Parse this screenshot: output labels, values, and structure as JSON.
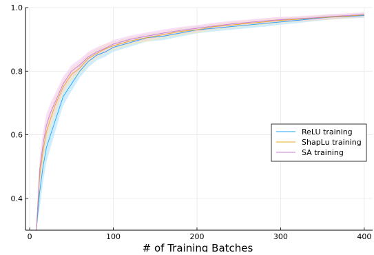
{
  "chart_data": {
    "type": "line",
    "title": "",
    "xlabel": "# of Training Batches",
    "ylabel": "",
    "xlim": [
      -5,
      410
    ],
    "ylim": [
      0.3,
      1.0
    ],
    "x_ticks": [
      0,
      100,
      200,
      300,
      400
    ],
    "y_ticks": [
      0.4,
      0.6,
      0.8,
      1.0
    ],
    "x_tick_labels": [
      "0",
      "100",
      "200",
      "300",
      "400"
    ],
    "y_tick_labels": [
      "0.4",
      "0.6",
      "0.8",
      "1.0"
    ],
    "grid": true,
    "legend_position": "center-right",
    "x": [
      8,
      12,
      16,
      20,
      25,
      30,
      35,
      40,
      45,
      50,
      60,
      70,
      80,
      90,
      100,
      120,
      140,
      160,
      180,
      200,
      220,
      240,
      260,
      280,
      300,
      320,
      340,
      360,
      380,
      400
    ],
    "series": [
      {
        "name": "ReLU training",
        "color": "#009AFA",
        "band_color": "#A8DEFF",
        "values": [
          0.3,
          0.42,
          0.5,
          0.56,
          0.6,
          0.64,
          0.68,
          0.72,
          0.74,
          0.76,
          0.8,
          0.83,
          0.85,
          0.86,
          0.875,
          0.89,
          0.905,
          0.91,
          0.92,
          0.93,
          0.935,
          0.94,
          0.945,
          0.95,
          0.955,
          0.96,
          0.965,
          0.97,
          0.972,
          0.975
        ],
        "band_width": [
          0.0,
          0.05,
          0.05,
          0.045,
          0.04,
          0.035,
          0.03,
          0.028,
          0.025,
          0.022,
          0.02,
          0.018,
          0.016,
          0.015,
          0.014,
          0.013,
          0.012,
          0.012,
          0.011,
          0.011,
          0.01,
          0.01,
          0.01,
          0.01,
          0.009,
          0.009,
          0.008,
          0.008,
          0.007,
          0.007
        ]
      },
      {
        "name": "ShapLu training",
        "color": "#E3A300",
        "band_color": "#FFE9A6",
        "values": [
          0.3,
          0.47,
          0.55,
          0.61,
          0.65,
          0.69,
          0.72,
          0.75,
          0.77,
          0.79,
          0.81,
          0.84,
          0.855,
          0.87,
          0.88,
          0.895,
          0.905,
          0.915,
          0.925,
          0.93,
          0.94,
          0.945,
          0.95,
          0.955,
          0.96,
          0.963,
          0.967,
          0.97,
          0.973,
          0.977
        ],
        "band_width": [
          0.0,
          0.04,
          0.04,
          0.035,
          0.03,
          0.028,
          0.025,
          0.023,
          0.02,
          0.019,
          0.018,
          0.016,
          0.015,
          0.014,
          0.013,
          0.012,
          0.012,
          0.011,
          0.011,
          0.01,
          0.01,
          0.01,
          0.009,
          0.009,
          0.009,
          0.008,
          0.008,
          0.008,
          0.007,
          0.007
        ]
      },
      {
        "name": "SA training",
        "color": "#C271D2",
        "band_color": "#F2C9F2",
        "values": [
          0.3,
          0.49,
          0.57,
          0.63,
          0.67,
          0.7,
          0.73,
          0.76,
          0.78,
          0.8,
          0.82,
          0.845,
          0.86,
          0.872,
          0.885,
          0.9,
          0.91,
          0.92,
          0.928,
          0.935,
          0.942,
          0.948,
          0.953,
          0.958,
          0.962,
          0.965,
          0.968,
          0.972,
          0.975,
          0.978
        ],
        "band_width": [
          0.0,
          0.04,
          0.04,
          0.035,
          0.03,
          0.028,
          0.025,
          0.023,
          0.02,
          0.019,
          0.018,
          0.016,
          0.015,
          0.014,
          0.013,
          0.012,
          0.012,
          0.011,
          0.011,
          0.01,
          0.01,
          0.01,
          0.009,
          0.009,
          0.009,
          0.008,
          0.008,
          0.008,
          0.007,
          0.007
        ]
      }
    ]
  }
}
